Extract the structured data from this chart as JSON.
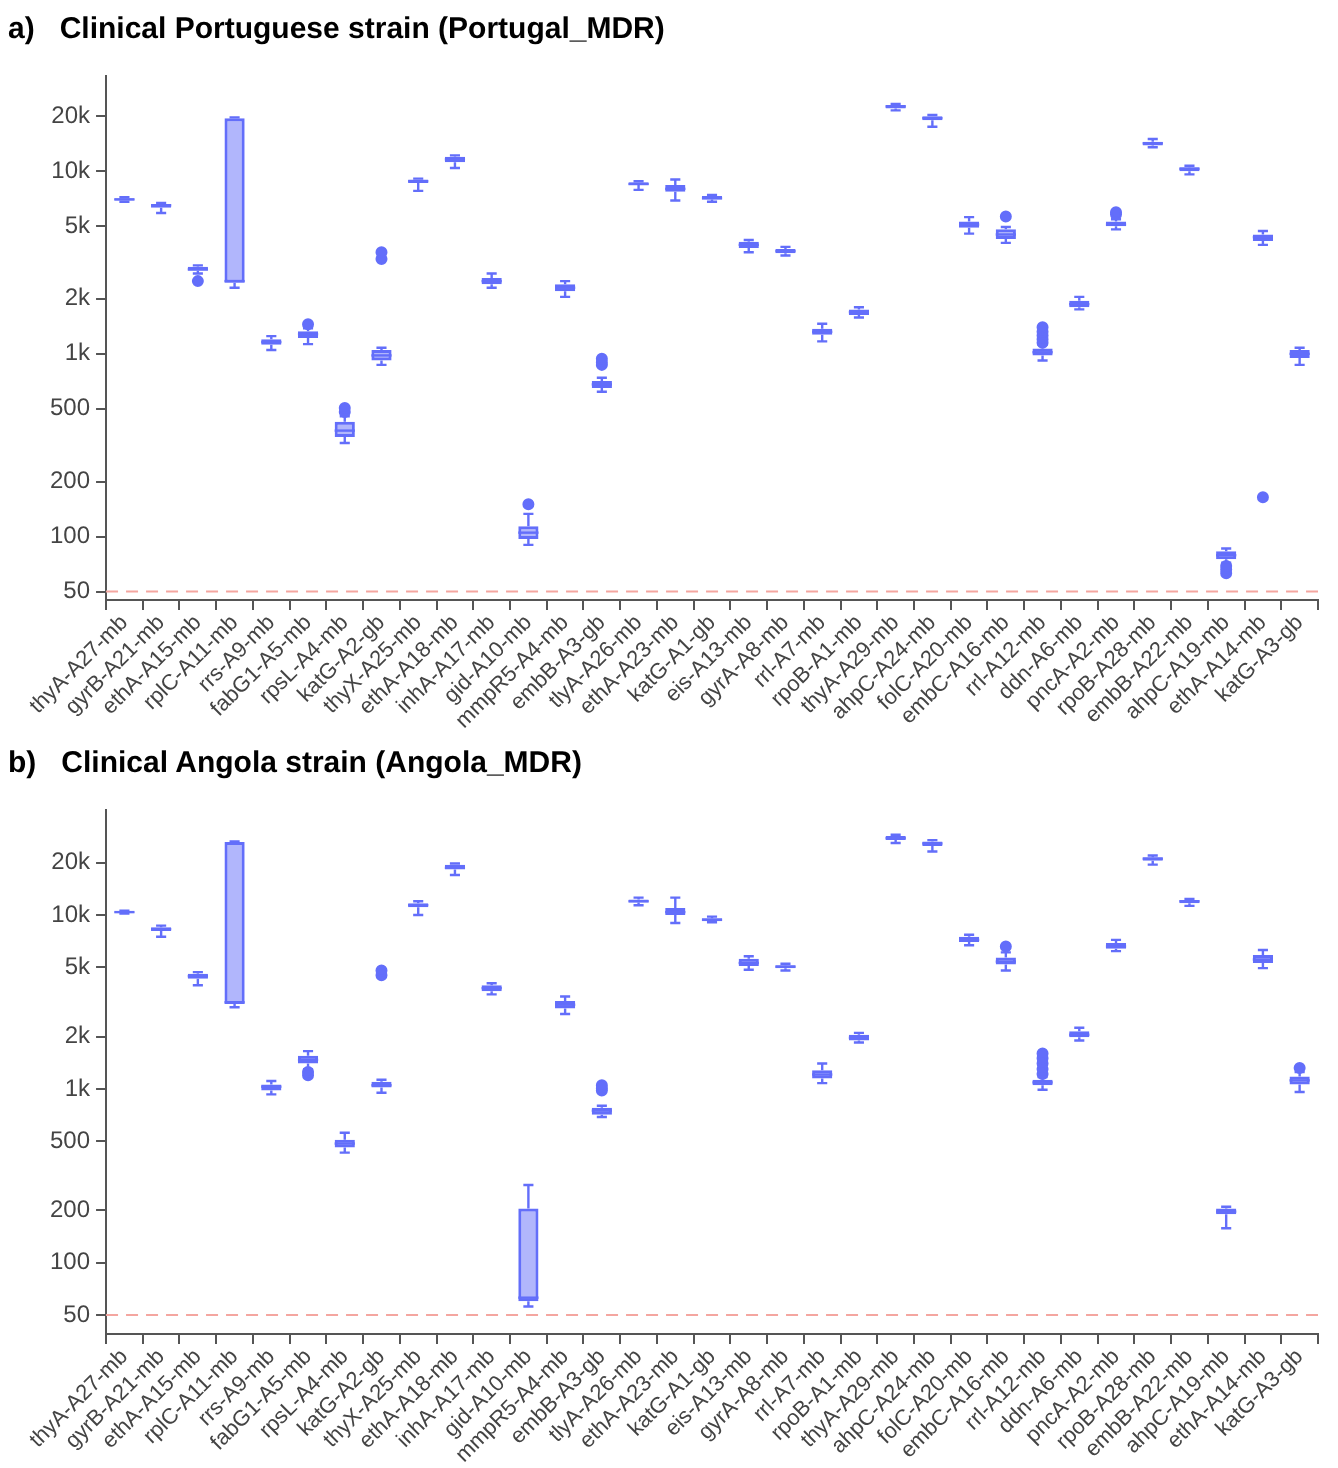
{
  "chart_data": [
    {
      "type": "box",
      "title": "a)   Clinical Portuguese strain (Portugal_MDR)",
      "color": "#636efa",
      "grid": false,
      "legend": false,
      "categories": [
        "thyA-A27-mb",
        "gyrB-A21-mb",
        "ethA-A15-mb",
        "rplC-A11-mb",
        "rrs-A9-mb",
        "fabG1-A5-mb",
        "rpsL-A4-mb",
        "katG-A2-gb",
        "thyX-A25-mb",
        "ethA-A18-mb",
        "inhA-A17-mb",
        "gid-A10-mb",
        "mmpR5-A4-mb",
        "embB-A3-gb",
        "tlyA-A26-mb",
        "ethA-A23-mb",
        "katG-A1-gb",
        "eis-A13-mb",
        "gyrA-A8-mb",
        "rrl-A7-mb",
        "rpoB-A1-mb",
        "thyA-A29-mb",
        "ahpC-A24-mb",
        "folC-A20-mb",
        "embC-A16-mb",
        "rrl-A12-mb",
        "ddn-A6-mb",
        "pncA-A2-mb",
        "rpoB-A28-mb",
        "embB-A22-mb",
        "ahpC-A19-mb",
        "ethA-A14-mb",
        "katG-A3-gb"
      ],
      "boxes": [
        {
          "low": 6800,
          "q1": 6900,
          "median": 7000,
          "q3": 7100,
          "high": 7200
        },
        {
          "low": 5900,
          "q1": 6300,
          "median": 6500,
          "q3": 6600,
          "high": 6700
        },
        {
          "low": 2750,
          "q1": 2850,
          "median": 2900,
          "q3": 3000,
          "high": 3050,
          "outliers": [
            2500
          ]
        },
        {
          "low": 2300,
          "q1": 2450,
          "median": 2500,
          "q3": 19500,
          "high": 19700
        },
        {
          "low": 1050,
          "q1": 1120,
          "median": 1160,
          "q3": 1200,
          "high": 1250
        },
        {
          "low": 1130,
          "q1": 1220,
          "median": 1280,
          "q3": 1330,
          "high": 1380,
          "outliers": [
            1450
          ]
        },
        {
          "low": 325,
          "q1": 350,
          "median": 380,
          "q3": 425,
          "high": 455,
          "outliers": [
            480,
            505
          ]
        },
        {
          "low": 870,
          "q1": 920,
          "median": 980,
          "q3": 1050,
          "high": 1080,
          "outliers": [
            3300,
            3600
          ]
        },
        {
          "low": 7800,
          "q1": 8600,
          "median": 8800,
          "q3": 9000,
          "high": 9100
        },
        {
          "low": 10400,
          "q1": 11200,
          "median": 11600,
          "q3": 12000,
          "high": 12200
        },
        {
          "low": 2300,
          "q1": 2400,
          "median": 2500,
          "q3": 2600,
          "high": 2750
        },
        {
          "low": 90,
          "q1": 97,
          "median": 105,
          "q3": 114,
          "high": 133,
          "outliers": [
            150
          ]
        },
        {
          "low": 2050,
          "q1": 2200,
          "median": 2300,
          "q3": 2400,
          "high": 2500
        },
        {
          "low": 620,
          "q1": 650,
          "median": 680,
          "q3": 710,
          "high": 740,
          "outliers": [
            870,
            900,
            940
          ]
        },
        {
          "low": 7900,
          "q1": 8400,
          "median": 8500,
          "q3": 8700,
          "high": 8800
        },
        {
          "low": 6900,
          "q1": 7700,
          "median": 8000,
          "q3": 8400,
          "high": 9000
        },
        {
          "low": 6800,
          "q1": 7000,
          "median": 7100,
          "q3": 7300,
          "high": 7400
        },
        {
          "low": 3600,
          "q1": 3800,
          "median": 3950,
          "q3": 4100,
          "high": 4200
        },
        {
          "low": 3450,
          "q1": 3550,
          "median": 3650,
          "q3": 3750,
          "high": 3850
        },
        {
          "low": 1170,
          "q1": 1270,
          "median": 1320,
          "q3": 1370,
          "high": 1460
        },
        {
          "low": 1580,
          "q1": 1630,
          "median": 1690,
          "q3": 1750,
          "high": 1800
        },
        {
          "low": 21500,
          "q1": 22000,
          "median": 22600,
          "q3": 23000,
          "high": 23300
        },
        {
          "low": 17500,
          "q1": 19000,
          "median": 19500,
          "q3": 20000,
          "high": 20300
        },
        {
          "low": 4550,
          "q1": 4900,
          "median": 5100,
          "q3": 5300,
          "high": 5600
        },
        {
          "low": 4050,
          "q1": 4250,
          "median": 4500,
          "q3": 4800,
          "high": 4950,
          "outliers": [
            5650
          ]
        },
        {
          "low": 920,
          "q1": 980,
          "median": 1020,
          "q3": 1070,
          "high": 1120,
          "outliers": [
            1150,
            1200,
            1260,
            1320,
            1400
          ]
        },
        {
          "low": 1750,
          "q1": 1800,
          "median": 1870,
          "q3": 1950,
          "high": 2050
        },
        {
          "low": 4800,
          "q1": 5000,
          "median": 5100,
          "q3": 5300,
          "high": 5450,
          "outliers": [
            5800,
            5950
          ]
        },
        {
          "low": 13500,
          "q1": 13800,
          "median": 14200,
          "q3": 14500,
          "high": 15000
        },
        {
          "low": 9600,
          "q1": 10000,
          "median": 10300,
          "q3": 10500,
          "high": 10700
        },
        {
          "low": 72,
          "q1": 75,
          "median": 79,
          "q3": 83,
          "high": 86,
          "outliers": [
            63,
            66,
            69
          ]
        },
        {
          "low": 3950,
          "q1": 4150,
          "median": 4350,
          "q3": 4500,
          "high": 4700,
          "outliers": [
            164
          ]
        },
        {
          "low": 870,
          "q1": 950,
          "median": 1000,
          "q3": 1050,
          "high": 1080
        }
      ],
      "ylim": [
        45,
        33000
      ],
      "log": true,
      "yticks": [
        50,
        100,
        200,
        500,
        {
          "value": 1000,
          "label": "1k"
        },
        {
          "value": 2000,
          "label": "2k"
        },
        {
          "value": 5000,
          "label": "5k"
        },
        {
          "value": 10000,
          "label": "10k"
        },
        {
          "value": 20000,
          "label": "20k"
        }
      ],
      "ref_lines": [
        {
          "axis": "y",
          "value": 50,
          "color": "#f4a6a0",
          "line_style": "dashed"
        }
      ]
    },
    {
      "type": "box",
      "title": "b)   Clinical Angola strain (Angola_MDR)",
      "color": "#636efa",
      "grid": false,
      "legend": false,
      "categories": [
        "thyA-A27-mb",
        "gyrB-A21-mb",
        "ethA-A15-mb",
        "rplC-A11-mb",
        "rrs-A9-mb",
        "fabG1-A5-mb",
        "rpsL-A4-mb",
        "katG-A2-gb",
        "thyX-A25-mb",
        "ethA-A18-mb",
        "inhA-A17-mb",
        "gid-A10-mb",
        "mmpR5-A4-mb",
        "embB-A3-gb",
        "tlyA-A26-mb",
        "ethA-A23-mb",
        "katG-A1-gb",
        "eis-A13-mb",
        "gyrA-A8-mb",
        "rrl-A7-mb",
        "rpoB-A1-mb",
        "thyA-A29-mb",
        "ahpC-A24-mb",
        "folC-A20-mb",
        "embC-A16-mb",
        "rrl-A12-mb",
        "ddn-A6-mb",
        "pncA-A2-mb",
        "rpoB-A28-mb",
        "embB-A22-mb",
        "ahpC-A19-mb",
        "ethA-A14-mb",
        "katG-A3-gb"
      ],
      "boxes": [
        {
          "low": 10200,
          "q1": 10300,
          "median": 10400,
          "q3": 10500,
          "high": 10600
        },
        {
          "low": 7500,
          "q1": 8100,
          "median": 8300,
          "q3": 8500,
          "high": 8700
        },
        {
          "low": 3950,
          "q1": 4300,
          "median": 4450,
          "q3": 4600,
          "high": 4700
        },
        {
          "low": 2950,
          "q1": 3080,
          "median": 3150,
          "q3": 26300,
          "high": 26500
        },
        {
          "low": 930,
          "q1": 980,
          "median": 1030,
          "q3": 1060,
          "high": 1110
        },
        {
          "low": 1300,
          "q1": 1400,
          "median": 1470,
          "q3": 1550,
          "high": 1650,
          "outliers": [
            1200,
            1250
          ]
        },
        {
          "low": 430,
          "q1": 460,
          "median": 485,
          "q3": 510,
          "high": 560
        },
        {
          "low": 950,
          "q1": 1020,
          "median": 1050,
          "q3": 1100,
          "high": 1130,
          "outliers": [
            4500,
            4800
          ]
        },
        {
          "low": 10000,
          "q1": 11100,
          "median": 11400,
          "q3": 11700,
          "high": 12000
        },
        {
          "low": 17000,
          "q1": 18300,
          "median": 18700,
          "q3": 19500,
          "high": 19800
        },
        {
          "low": 3500,
          "q1": 3650,
          "median": 3800,
          "q3": 3950,
          "high": 4050
        },
        {
          "low": 56,
          "q1": 60,
          "median": 63,
          "q3": 205,
          "high": 280
        },
        {
          "low": 2700,
          "q1": 2900,
          "median": 3050,
          "q3": 3200,
          "high": 3400
        },
        {
          "low": 690,
          "q1": 710,
          "median": 750,
          "q3": 780,
          "high": 800,
          "outliers": [
            980,
            1010,
            1050
          ]
        },
        {
          "low": 11400,
          "q1": 11800,
          "median": 12000,
          "q3": 12300,
          "high": 12600
        },
        {
          "low": 9000,
          "q1": 10000,
          "median": 10400,
          "q3": 11000,
          "high": 12600
        },
        {
          "low": 9100,
          "q1": 9200,
          "median": 9400,
          "q3": 9600,
          "high": 9800
        },
        {
          "low": 4850,
          "q1": 5100,
          "median": 5300,
          "q3": 5600,
          "high": 5800
        },
        {
          "low": 4800,
          "q1": 4950,
          "median": 5050,
          "q3": 5150,
          "high": 5250
        },
        {
          "low": 1080,
          "q1": 1150,
          "median": 1210,
          "q3": 1280,
          "high": 1400
        },
        {
          "low": 1850,
          "q1": 1900,
          "median": 1970,
          "q3": 2050,
          "high": 2100
        },
        {
          "low": 26000,
          "q1": 27000,
          "median": 27700,
          "q3": 28500,
          "high": 29000
        },
        {
          "low": 23200,
          "q1": 25000,
          "median": 25800,
          "q3": 26500,
          "high": 27000
        },
        {
          "low": 6700,
          "q1": 7000,
          "median": 7200,
          "q3": 7500,
          "high": 7700
        },
        {
          "low": 4800,
          "q1": 5200,
          "median": 5400,
          "q3": 5700,
          "high": 6100,
          "outliers": [
            6600
          ]
        },
        {
          "low": 990,
          "q1": 1050,
          "median": 1090,
          "q3": 1130,
          "high": 1170,
          "outliers": [
            1220,
            1300,
            1400,
            1500,
            1600
          ]
        },
        {
          "low": 1900,
          "q1": 1980,
          "median": 2050,
          "q3": 2150,
          "high": 2250
        },
        {
          "low": 6200,
          "q1": 6400,
          "median": 6600,
          "q3": 6900,
          "high": 7200
        },
        {
          "low": 19500,
          "q1": 20500,
          "median": 21100,
          "q3": 21500,
          "high": 22000
        },
        {
          "low": 11300,
          "q1": 11700,
          "median": 12000,
          "q3": 12200,
          "high": 12400
        },
        {
          "low": 158,
          "q1": 190,
          "median": 197,
          "q3": 205,
          "high": 210
        },
        {
          "low": 4950,
          "q1": 5300,
          "median": 5550,
          "q3": 5900,
          "high": 6300
        },
        {
          "low": 960,
          "q1": 1060,
          "median": 1120,
          "q3": 1180,
          "high": 1250,
          "outliers": [
            1320
          ]
        }
      ],
      "ylim": [
        39,
        40000
      ],
      "log": true,
      "yticks": [
        50,
        100,
        200,
        500,
        {
          "value": 1000,
          "label": "1k"
        },
        {
          "value": 2000,
          "label": "2k"
        },
        {
          "value": 5000,
          "label": "5k"
        },
        {
          "value": 10000,
          "label": "10k"
        },
        {
          "value": 20000,
          "label": "20k"
        }
      ],
      "ref_lines": [
        {
          "axis": "y",
          "value": 50,
          "color": "#f4a6a0",
          "line_style": "dashed"
        }
      ]
    }
  ]
}
